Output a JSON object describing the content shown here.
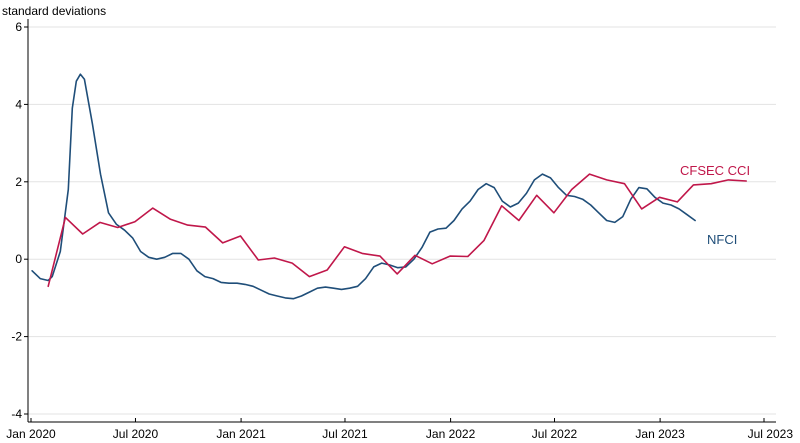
{
  "chart_data": {
    "type": "line",
    "ylabel": "standard deviations",
    "ylim": [
      -4,
      6
    ],
    "yticks": [
      6,
      4,
      2,
      0,
      -2,
      -4
    ],
    "xlim": [
      "2020-01",
      "2023-07"
    ],
    "xticks": [
      {
        "date": "2020-01",
        "label": "Jan 2020"
      },
      {
        "date": "2020-07",
        "label": "Jul 2020"
      },
      {
        "date": "2021-01",
        "label": "Jan 2021"
      },
      {
        "date": "2021-07",
        "label": "Jul 2021"
      },
      {
        "date": "2022-01",
        "label": "Jan 2022"
      },
      {
        "date": "2022-07",
        "label": "Jul 2022"
      },
      {
        "date": "2023-01",
        "label": "Jan 2023"
      },
      {
        "date": "2023-07",
        "label": "Jul 2023"
      }
    ],
    "grid": true,
    "series": [
      {
        "name": "NFCI",
        "color": "#1f4e79",
        "points": [
          [
            "2020-01-03",
            -0.3
          ],
          [
            "2020-01-17",
            -0.5
          ],
          [
            "2020-01-31",
            -0.55
          ],
          [
            "2020-02-07",
            -0.45
          ],
          [
            "2020-02-21",
            0.2
          ],
          [
            "2020-03-06",
            1.8
          ],
          [
            "2020-03-13",
            3.9
          ],
          [
            "2020-03-20",
            4.6
          ],
          [
            "2020-03-27",
            4.78
          ],
          [
            "2020-04-03",
            4.65
          ],
          [
            "2020-04-17",
            3.5
          ],
          [
            "2020-05-01",
            2.2
          ],
          [
            "2020-05-15",
            1.2
          ],
          [
            "2020-05-29",
            0.9
          ],
          [
            "2020-06-12",
            0.75
          ],
          [
            "2020-06-26",
            0.55
          ],
          [
            "2020-07-10",
            0.2
          ],
          [
            "2020-07-24",
            0.05
          ],
          [
            "2020-08-07",
            0.0
          ],
          [
            "2020-08-21",
            0.05
          ],
          [
            "2020-09-04",
            0.15
          ],
          [
            "2020-09-18",
            0.15
          ],
          [
            "2020-10-02",
            0.0
          ],
          [
            "2020-10-16",
            -0.3
          ],
          [
            "2020-10-30",
            -0.45
          ],
          [
            "2020-11-13",
            -0.5
          ],
          [
            "2020-11-27",
            -0.6
          ],
          [
            "2020-12-11",
            -0.62
          ],
          [
            "2020-12-25",
            -0.62
          ],
          [
            "2021-01-08",
            -0.65
          ],
          [
            "2021-01-22",
            -0.7
          ],
          [
            "2021-02-05",
            -0.8
          ],
          [
            "2021-02-19",
            -0.9
          ],
          [
            "2021-03-05",
            -0.95
          ],
          [
            "2021-03-19",
            -1.0
          ],
          [
            "2021-04-02",
            -1.02
          ],
          [
            "2021-04-16",
            -0.95
          ],
          [
            "2021-04-30",
            -0.85
          ],
          [
            "2021-05-14",
            -0.75
          ],
          [
            "2021-05-28",
            -0.72
          ],
          [
            "2021-06-11",
            -0.75
          ],
          [
            "2021-06-25",
            -0.78
          ],
          [
            "2021-07-09",
            -0.75
          ],
          [
            "2021-07-23",
            -0.7
          ],
          [
            "2021-08-06",
            -0.5
          ],
          [
            "2021-08-20",
            -0.2
          ],
          [
            "2021-09-03",
            -0.1
          ],
          [
            "2021-09-17",
            -0.15
          ],
          [
            "2021-10-01",
            -0.22
          ],
          [
            "2021-10-15",
            -0.2
          ],
          [
            "2021-10-29",
            0.0
          ],
          [
            "2021-11-12",
            0.3
          ],
          [
            "2021-11-26",
            0.7
          ],
          [
            "2021-12-10",
            0.78
          ],
          [
            "2021-12-24",
            0.8
          ],
          [
            "2022-01-07",
            1.0
          ],
          [
            "2022-01-21",
            1.3
          ],
          [
            "2022-02-04",
            1.5
          ],
          [
            "2022-02-18",
            1.8
          ],
          [
            "2022-03-04",
            1.95
          ],
          [
            "2022-03-18",
            1.85
          ],
          [
            "2022-04-01",
            1.5
          ],
          [
            "2022-04-15",
            1.35
          ],
          [
            "2022-04-29",
            1.45
          ],
          [
            "2022-05-13",
            1.7
          ],
          [
            "2022-05-27",
            2.05
          ],
          [
            "2022-06-10",
            2.2
          ],
          [
            "2022-06-24",
            2.1
          ],
          [
            "2022-07-08",
            1.85
          ],
          [
            "2022-07-22",
            1.65
          ],
          [
            "2022-08-05",
            1.62
          ],
          [
            "2022-08-19",
            1.55
          ],
          [
            "2022-09-02",
            1.4
          ],
          [
            "2022-09-16",
            1.2
          ],
          [
            "2022-09-30",
            1.0
          ],
          [
            "2022-10-14",
            0.95
          ],
          [
            "2022-10-28",
            1.1
          ],
          [
            "2022-11-11",
            1.55
          ],
          [
            "2022-11-25",
            1.85
          ],
          [
            "2022-12-09",
            1.82
          ],
          [
            "2022-12-23",
            1.6
          ],
          [
            "2023-01-06",
            1.45
          ],
          [
            "2023-01-20",
            1.4
          ],
          [
            "2023-02-03",
            1.3
          ],
          [
            "2023-02-17",
            1.15
          ],
          [
            "2023-03-03",
            1.0
          ]
        ]
      },
      {
        "name": "CFSEC CCI",
        "color": "#c0174a",
        "points": [
          [
            "2020-01-31",
            -0.7
          ],
          [
            "2020-03-01",
            1.08
          ],
          [
            "2020-03-31",
            0.65
          ],
          [
            "2020-04-30",
            0.95
          ],
          [
            "2020-05-31",
            0.82
          ],
          [
            "2020-06-30",
            0.97
          ],
          [
            "2020-07-31",
            1.32
          ],
          [
            "2020-08-31",
            1.03
          ],
          [
            "2020-09-30",
            0.88
          ],
          [
            "2020-10-31",
            0.83
          ],
          [
            "2020-11-30",
            0.42
          ],
          [
            "2020-12-31",
            0.6
          ],
          [
            "2021-01-31",
            -0.02
          ],
          [
            "2021-02-28",
            0.03
          ],
          [
            "2021-03-31",
            -0.1
          ],
          [
            "2021-04-30",
            -0.45
          ],
          [
            "2021-05-31",
            -0.28
          ],
          [
            "2021-06-30",
            0.32
          ],
          [
            "2021-07-31",
            0.15
          ],
          [
            "2021-08-31",
            0.08
          ],
          [
            "2021-09-30",
            -0.38
          ],
          [
            "2021-10-31",
            0.1
          ],
          [
            "2021-11-30",
            -0.12
          ],
          [
            "2021-12-31",
            0.08
          ],
          [
            "2022-01-31",
            0.07
          ],
          [
            "2022-02-28",
            0.48
          ],
          [
            "2022-03-31",
            1.38
          ],
          [
            "2022-04-30",
            1.0
          ],
          [
            "2022-05-31",
            1.65
          ],
          [
            "2022-06-30",
            1.2
          ],
          [
            "2022-07-31",
            1.8
          ],
          [
            "2022-08-31",
            2.2
          ],
          [
            "2022-09-30",
            2.05
          ],
          [
            "2022-10-31",
            1.95
          ],
          [
            "2022-11-30",
            1.3
          ],
          [
            "2022-12-31",
            1.6
          ],
          [
            "2023-01-31",
            1.48
          ],
          [
            "2023-02-28",
            1.92
          ],
          [
            "2023-03-31",
            1.95
          ],
          [
            "2023-04-30",
            2.05
          ],
          [
            "2023-05-31",
            2.02
          ]
        ]
      }
    ],
    "annotations": [
      {
        "text": "CFSEC CCI",
        "series": "CFSEC CCI"
      },
      {
        "text": "NFCI",
        "series": "NFCI"
      }
    ]
  }
}
